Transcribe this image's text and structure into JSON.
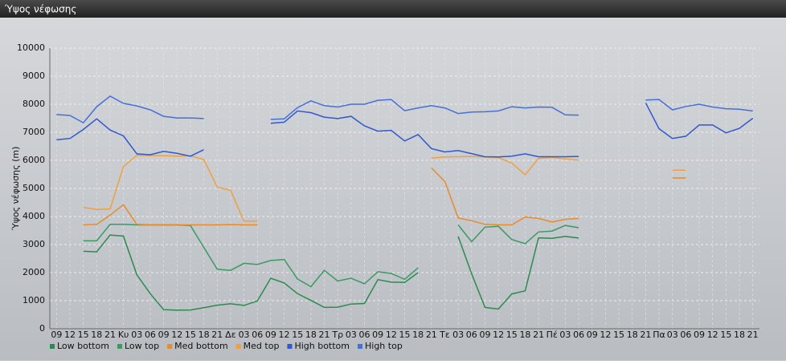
{
  "chart_data": {
    "type": "line",
    "title": "Ύψος νέφωσης",
    "ylabel": "Ύψος νέφωσης (m)",
    "categories": [
      "09",
      "12",
      "15",
      "18",
      "21",
      "Κυ",
      "03",
      "06",
      "09",
      "12",
      "15",
      "18",
      "21",
      "Δε",
      "03",
      "06",
      "09",
      "12",
      "15",
      "18",
      "21",
      "Τρ",
      "03",
      "06",
      "09",
      "12",
      "15",
      "18",
      "21",
      "Τε",
      "03",
      "06",
      "09",
      "12",
      "15",
      "18",
      "21",
      "Πέ",
      "03",
      "06",
      "09",
      "12",
      "15",
      "18",
      "21",
      "Πα",
      "03",
      "06",
      "09",
      "12",
      "15",
      "18",
      "21"
    ],
    "ylim": [
      0,
      10000
    ],
    "yticks": [
      0,
      1000,
      2000,
      3000,
      4000,
      5000,
      6000,
      7000,
      8000,
      9000,
      10000
    ],
    "grid": true,
    "series": [
      {
        "name": "Low bottom",
        "color": "#2b8a4e",
        "values": [
          null,
          null,
          2760,
          2740,
          3340,
          3300,
          1920,
          1250,
          680,
          660,
          670,
          750,
          840,
          890,
          830,
          990,
          1800,
          1630,
          1250,
          1010,
          760,
          770,
          880,
          900,
          1750,
          1660,
          1650,
          2000,
          null,
          null,
          3290,
          1960,
          760,
          700,
          1240,
          1350,
          3240,
          3220,
          3290,
          3230,
          null,
          null,
          null,
          null,
          null,
          null,
          null,
          null,
          null,
          null,
          null,
          null,
          null
        ]
      },
      {
        "name": "Low top",
        "color": "#3a9a64",
        "values": [
          null,
          null,
          3130,
          3130,
          3720,
          3720,
          3700,
          3700,
          3700,
          3700,
          3680,
          2900,
          2120,
          2080,
          2330,
          2290,
          2430,
          2470,
          1770,
          1500,
          2080,
          1700,
          1800,
          1600,
          2030,
          1970,
          1760,
          2170,
          null,
          null,
          3700,
          3100,
          3620,
          3650,
          3180,
          3030,
          3450,
          3480,
          3680,
          3600,
          null,
          null,
          null,
          null,
          null,
          null,
          null,
          null,
          null,
          null,
          null,
          null,
          null
        ]
      },
      {
        "name": "Med bottom",
        "color": "#e88b2a",
        "values": [
          null,
          null,
          3700,
          3720,
          4050,
          4420,
          3720,
          3700,
          3700,
          3700,
          3700,
          3700,
          3700,
          3710,
          3700,
          3700,
          null,
          null,
          null,
          null,
          null,
          null,
          null,
          null,
          null,
          null,
          null,
          null,
          5730,
          5250,
          3950,
          3850,
          3720,
          3700,
          3700,
          3980,
          3930,
          3800,
          3900,
          3930,
          null,
          null,
          null,
          null,
          null,
          null,
          5370,
          5370,
          null,
          null,
          null,
          null,
          null
        ]
      },
      {
        "name": "Med top",
        "color": "#f0a040",
        "values": [
          null,
          null,
          4320,
          4250,
          4270,
          5780,
          6180,
          6170,
          6170,
          6150,
          6160,
          6030,
          5050,
          4930,
          3830,
          3830,
          null,
          null,
          null,
          null,
          null,
          null,
          null,
          null,
          null,
          null,
          null,
          null,
          6080,
          6120,
          6130,
          6140,
          6120,
          6100,
          5900,
          5490,
          6070,
          6110,
          6050,
          6010,
          null,
          null,
          null,
          null,
          null,
          null,
          5650,
          5650,
          null,
          null,
          null,
          null,
          null
        ]
      },
      {
        "name": "High bottom",
        "color": "#3058d0",
        "values": [
          6730,
          6780,
          7100,
          7480,
          7080,
          6870,
          6230,
          6200,
          6320,
          6250,
          6150,
          6380,
          null,
          null,
          null,
          null,
          7320,
          7360,
          7760,
          7700,
          7540,
          7490,
          7570,
          7230,
          7040,
          7070,
          6690,
          6920,
          6420,
          6300,
          6350,
          6240,
          6130,
          6120,
          6150,
          6230,
          6130,
          6130,
          6130,
          6140,
          null,
          null,
          null,
          null,
          8050,
          7130,
          6780,
          6860,
          7260,
          7260,
          6980,
          7140,
          7500
        ]
      },
      {
        "name": "High top",
        "color": "#4570d8",
        "values": [
          7630,
          7600,
          7340,
          7910,
          8290,
          8030,
          7940,
          7800,
          7570,
          7510,
          7510,
          7490,
          null,
          null,
          null,
          null,
          7460,
          7480,
          7880,
          8120,
          7950,
          7900,
          8000,
          8000,
          8140,
          8170,
          7770,
          7870,
          7950,
          7870,
          7670,
          7720,
          7730,
          7760,
          7910,
          7870,
          7900,
          7890,
          7620,
          7610,
          null,
          null,
          null,
          null,
          8150,
          8170,
          7800,
          7920,
          8000,
          7900,
          7840,
          7820,
          7760
        ]
      }
    ]
  }
}
